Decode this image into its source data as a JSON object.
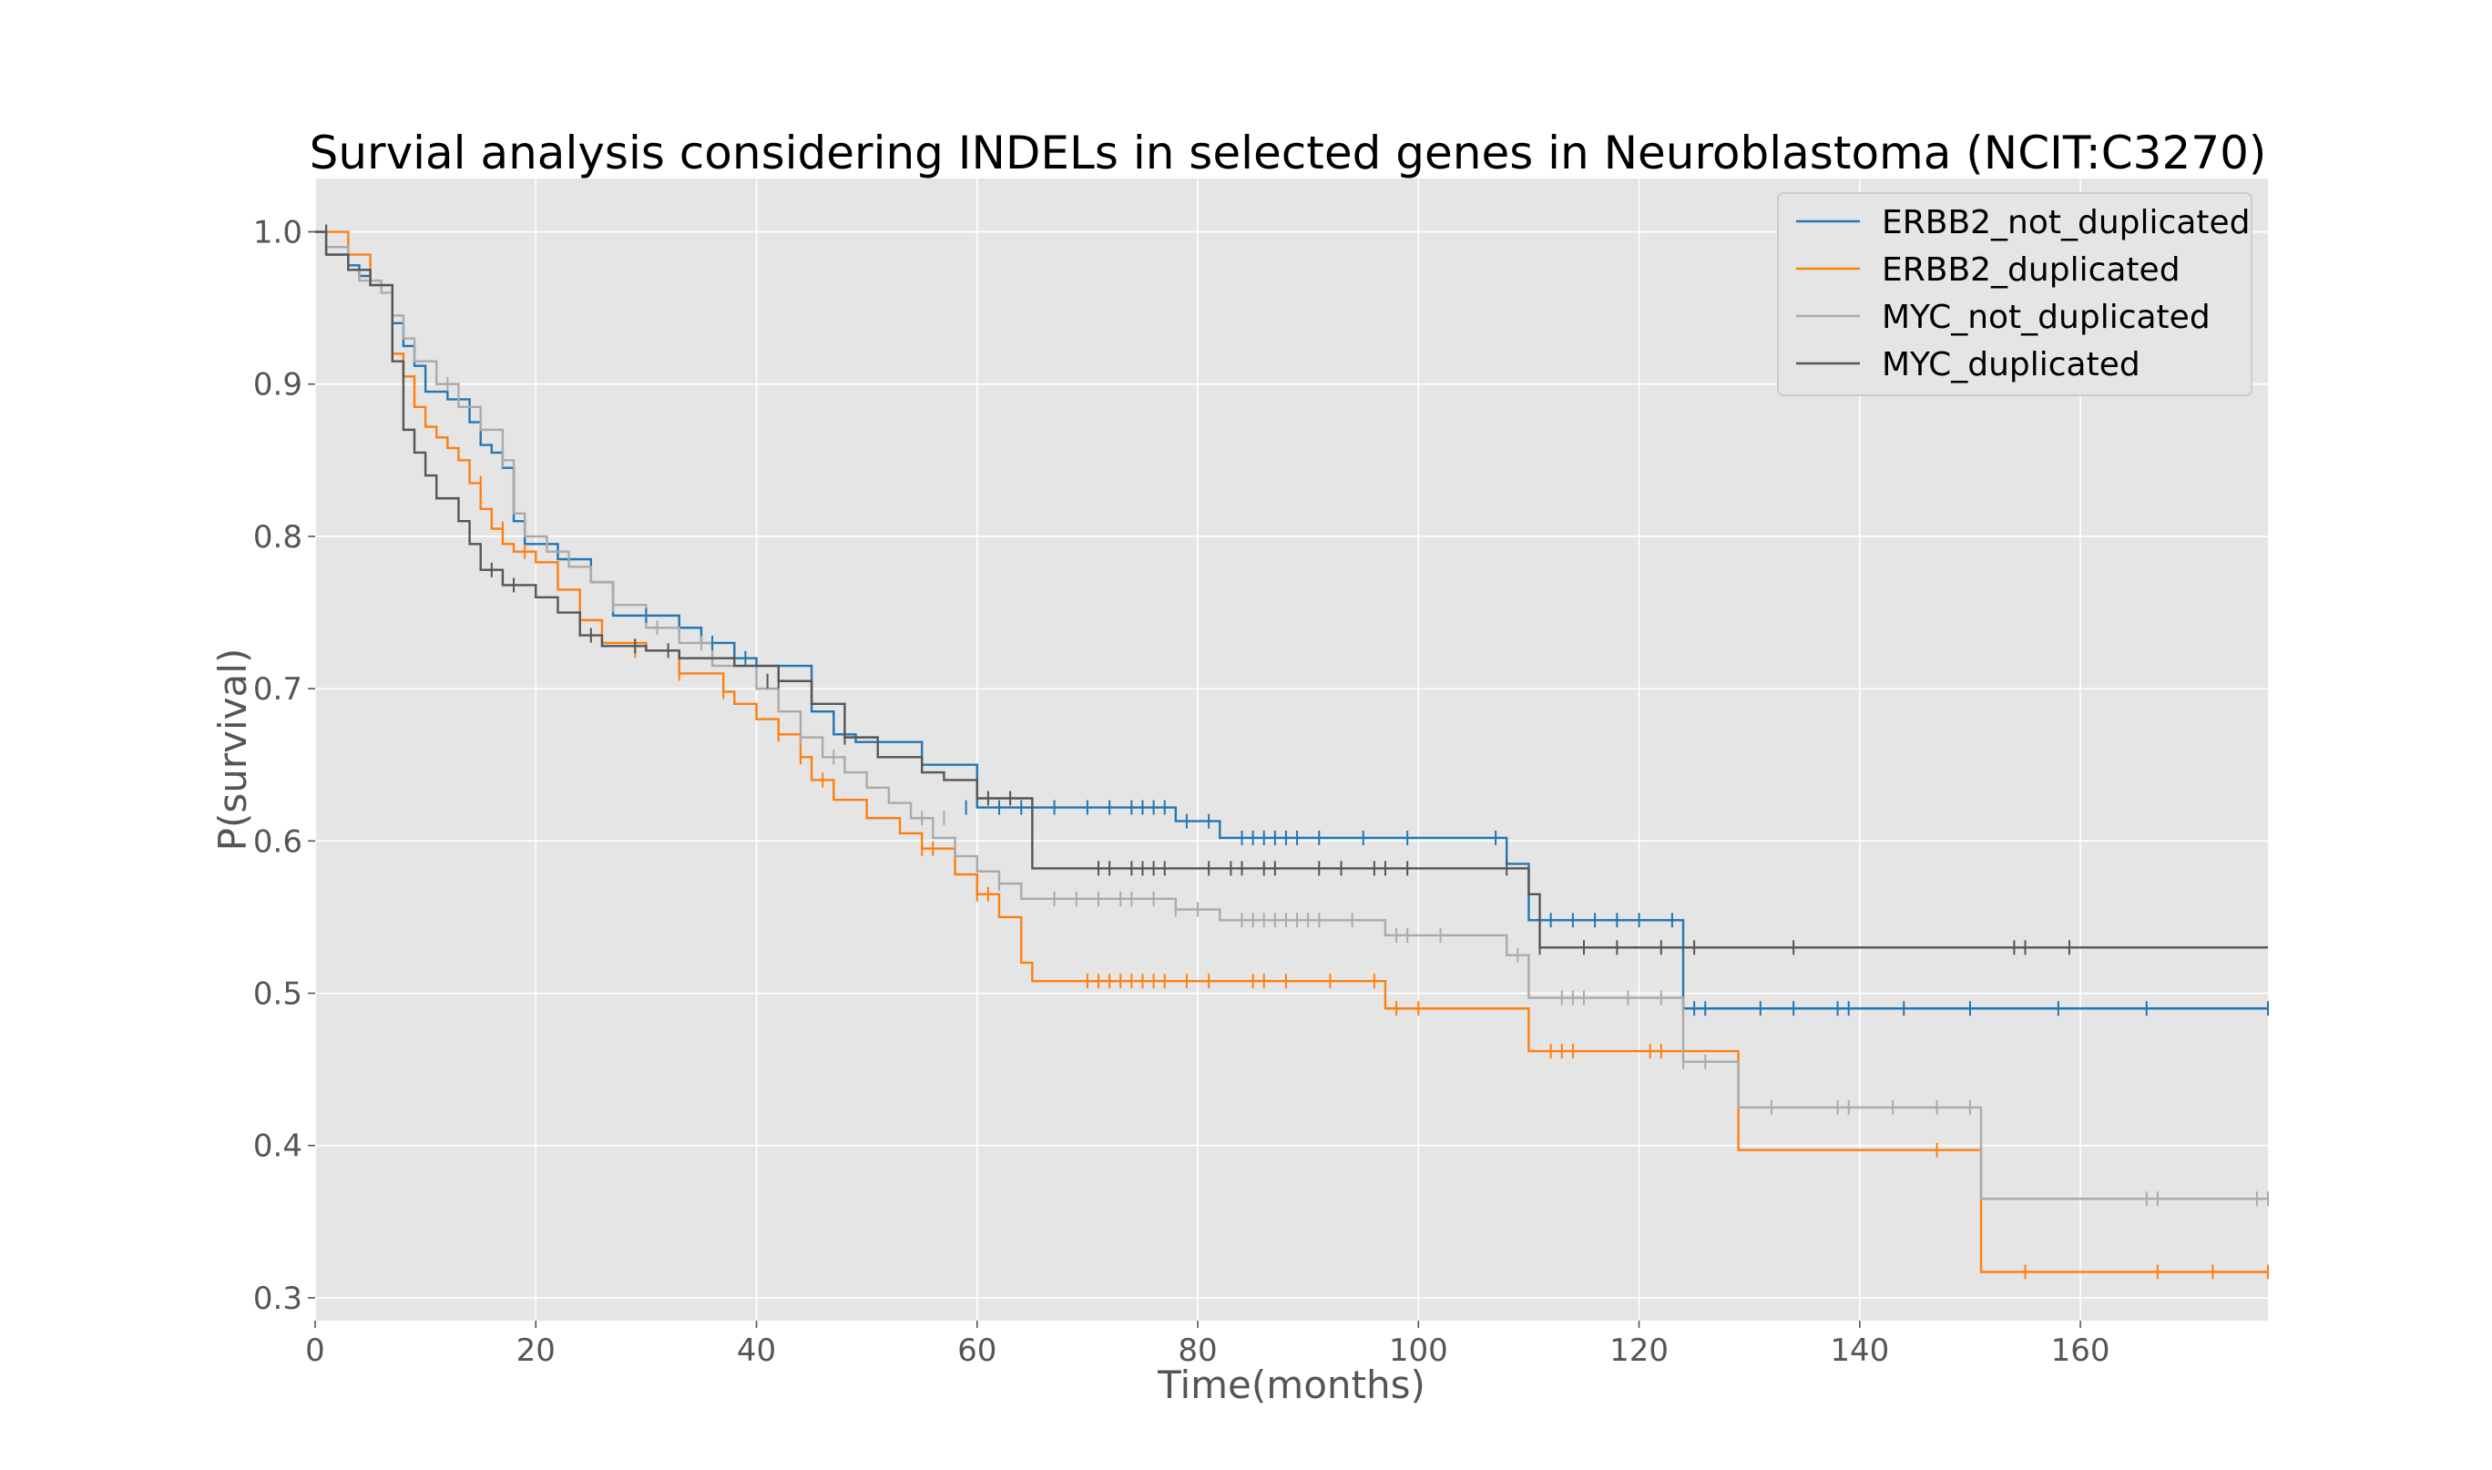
{
  "chart_data": {
    "type": "line",
    "subtype": "kaplan-meier step",
    "title": "Survial analysis considering INDELs in selected genes in Neuroblastoma (NCIT:C3270)",
    "xlabel": "Time(months)",
    "ylabel": "P(survival)",
    "xlim": [
      0,
      177
    ],
    "ylim": [
      0.285,
      1.035
    ],
    "xticks": [
      0,
      20,
      40,
      60,
      80,
      100,
      120,
      140,
      160
    ],
    "yticks": [
      0.3,
      0.4,
      0.5,
      0.6,
      0.7,
      0.8,
      0.9,
      1.0
    ],
    "xtick_labels": [
      "0",
      "20",
      "40",
      "60",
      "80",
      "100",
      "120",
      "140",
      "160"
    ],
    "ytick_labels": [
      "0.3",
      "0.4",
      "0.5",
      "0.6",
      "0.7",
      "0.8",
      "0.9",
      "1.0"
    ],
    "grid": true,
    "background": "#e5e5e5",
    "legend_position": "top-right",
    "series": [
      {
        "name": "ERBB2_not_duplicated",
        "color": "#1f77b4",
        "x": [
          0,
          1,
          3,
          4,
          5,
          7,
          8,
          9,
          10,
          12,
          14,
          15,
          16,
          17,
          18,
          19,
          22,
          25,
          27,
          33,
          35,
          38,
          40,
          45,
          47,
          49,
          53,
          55,
          60,
          78,
          82,
          108,
          110,
          124,
          177
        ],
        "y": [
          1.0,
          0.985,
          0.978,
          0.971,
          0.965,
          0.94,
          0.925,
          0.912,
          0.895,
          0.89,
          0.875,
          0.86,
          0.855,
          0.845,
          0.81,
          0.795,
          0.785,
          0.77,
          0.748,
          0.74,
          0.73,
          0.72,
          0.715,
          0.685,
          0.67,
          0.665,
          0.665,
          0.65,
          0.622,
          0.613,
          0.602,
          0.585,
          0.548,
          0.49,
          0.49
        ],
        "censor_x": [
          1,
          30,
          36,
          39,
          59,
          62,
          64,
          67,
          70,
          72,
          74,
          75,
          76,
          77,
          79,
          81,
          84,
          85,
          86,
          87,
          88,
          89,
          91,
          95,
          99,
          107,
          112,
          114,
          116,
          118,
          120,
          123,
          125,
          126,
          131,
          134,
          138,
          139,
          144,
          150,
          158,
          166,
          177
        ],
        "censor_y": [
          1.0,
          0.748,
          0.73,
          0.72,
          0.622,
          0.622,
          0.622,
          0.622,
          0.622,
          0.622,
          0.622,
          0.622,
          0.622,
          0.622,
          0.613,
          0.613,
          0.602,
          0.602,
          0.602,
          0.602,
          0.602,
          0.602,
          0.602,
          0.602,
          0.602,
          0.602,
          0.548,
          0.548,
          0.548,
          0.548,
          0.548,
          0.548,
          0.49,
          0.49,
          0.49,
          0.49,
          0.49,
          0.49,
          0.49,
          0.49,
          0.49,
          0.49,
          0.49
        ]
      },
      {
        "name": "ERBB2_duplicated",
        "color": "#ff7f0e",
        "x": [
          0,
          3,
          5,
          7,
          8,
          9,
          10,
          11,
          12,
          13,
          14,
          15,
          16,
          17,
          18,
          20,
          22,
          24,
          26,
          30,
          33,
          37,
          38,
          40,
          42,
          44,
          45,
          47,
          50,
          53,
          55,
          58,
          60,
          62,
          64,
          65,
          97,
          110,
          129,
          151,
          177
        ],
        "y": [
          1.0,
          0.985,
          0.965,
          0.92,
          0.905,
          0.885,
          0.872,
          0.865,
          0.858,
          0.85,
          0.835,
          0.818,
          0.805,
          0.795,
          0.79,
          0.783,
          0.765,
          0.745,
          0.73,
          0.725,
          0.71,
          0.698,
          0.69,
          0.68,
          0.67,
          0.655,
          0.64,
          0.627,
          0.615,
          0.605,
          0.595,
          0.578,
          0.565,
          0.55,
          0.52,
          0.508,
          0.49,
          0.462,
          0.397,
          0.317,
          0.317
        ],
        "censor_x": [
          1,
          15,
          17,
          19,
          29,
          33,
          37,
          42,
          44,
          46,
          55,
          56,
          60,
          61,
          70,
          71,
          72,
          73,
          74,
          75,
          76,
          77,
          79,
          81,
          85,
          86,
          88,
          92,
          96,
          98,
          100,
          112,
          113,
          114,
          121,
          122,
          147,
          155,
          167,
          172,
          177
        ],
        "censor_y": [
          1.0,
          0.835,
          0.805,
          0.79,
          0.725,
          0.71,
          0.698,
          0.67,
          0.655,
          0.64,
          0.595,
          0.595,
          0.565,
          0.565,
          0.508,
          0.508,
          0.508,
          0.508,
          0.508,
          0.508,
          0.508,
          0.508,
          0.508,
          0.508,
          0.508,
          0.508,
          0.508,
          0.508,
          0.508,
          0.49,
          0.49,
          0.462,
          0.462,
          0.462,
          0.462,
          0.462,
          0.397,
          0.317,
          0.317,
          0.317,
          0.317
        ]
      },
      {
        "name": "MYC_not_duplicated",
        "color": "#aaaaaa",
        "x": [
          0,
          1,
          3,
          4,
          6,
          7,
          8,
          9,
          11,
          13,
          15,
          17,
          18,
          19,
          21,
          23,
          25,
          27,
          30,
          33,
          36,
          40,
          42,
          44,
          46,
          48,
          50,
          52,
          54,
          56,
          58,
          60,
          62,
          64,
          78,
          82,
          97,
          108,
          110,
          124,
          129,
          151,
          177
        ],
        "y": [
          1.0,
          0.99,
          0.975,
          0.968,
          0.96,
          0.945,
          0.93,
          0.915,
          0.9,
          0.885,
          0.87,
          0.85,
          0.815,
          0.8,
          0.79,
          0.78,
          0.77,
          0.755,
          0.74,
          0.73,
          0.715,
          0.7,
          0.685,
          0.668,
          0.655,
          0.645,
          0.635,
          0.625,
          0.615,
          0.602,
          0.59,
          0.58,
          0.572,
          0.562,
          0.555,
          0.548,
          0.538,
          0.525,
          0.497,
          0.455,
          0.425,
          0.365,
          0.365
        ],
        "censor_x": [
          1,
          12,
          17,
          27,
          31,
          35,
          44,
          47,
          55,
          57,
          62,
          67,
          69,
          71,
          73,
          74,
          76,
          78,
          80,
          84,
          85,
          86,
          87,
          88,
          89,
          90,
          91,
          94,
          98,
          99,
          102,
          109,
          113,
          114,
          115,
          119,
          122,
          124,
          126,
          132,
          138,
          139,
          143,
          147,
          150,
          166,
          167,
          176,
          177
        ],
        "censor_y": [
          1.0,
          0.9,
          0.85,
          0.755,
          0.74,
          0.73,
          0.668,
          0.655,
          0.615,
          0.615,
          0.572,
          0.562,
          0.562,
          0.562,
          0.562,
          0.562,
          0.562,
          0.555,
          0.555,
          0.548,
          0.548,
          0.548,
          0.548,
          0.548,
          0.548,
          0.548,
          0.548,
          0.548,
          0.538,
          0.538,
          0.538,
          0.525,
          0.497,
          0.497,
          0.497,
          0.497,
          0.497,
          0.455,
          0.455,
          0.425,
          0.425,
          0.425,
          0.425,
          0.425,
          0.425,
          0.365,
          0.365,
          0.365,
          0.365
        ]
      },
      {
        "name": "MYC_duplicated",
        "color": "#555555",
        "x": [
          0,
          1,
          3,
          5,
          7,
          8,
          9,
          10,
          11,
          13,
          14,
          15,
          17,
          20,
          22,
          24,
          26,
          30,
          33,
          38,
          42,
          45,
          48,
          51,
          55,
          57,
          60,
          65,
          110,
          111,
          177
        ],
        "y": [
          1.0,
          0.985,
          0.975,
          0.965,
          0.915,
          0.87,
          0.855,
          0.84,
          0.825,
          0.81,
          0.795,
          0.778,
          0.768,
          0.76,
          0.75,
          0.735,
          0.728,
          0.725,
          0.72,
          0.715,
          0.705,
          0.69,
          0.668,
          0.655,
          0.645,
          0.64,
          0.628,
          0.582,
          0.565,
          0.53,
          0.53
        ],
        "censor_x": [
          1,
          16,
          18,
          25,
          29,
          32,
          41,
          42,
          48,
          61,
          63,
          71,
          72,
          74,
          75,
          76,
          77,
          81,
          83,
          84,
          86,
          87,
          91,
          93,
          96,
          97,
          99,
          108,
          111,
          115,
          118,
          122,
          125,
          134,
          154,
          155,
          159
        ],
        "censor_y": [
          1.0,
          0.778,
          0.768,
          0.735,
          0.728,
          0.725,
          0.705,
          0.705,
          0.668,
          0.628,
          0.628,
          0.582,
          0.582,
          0.582,
          0.582,
          0.582,
          0.582,
          0.582,
          0.582,
          0.582,
          0.582,
          0.582,
          0.582,
          0.582,
          0.582,
          0.582,
          0.582,
          0.582,
          0.53,
          0.53,
          0.53,
          0.53,
          0.53,
          0.53,
          0.53,
          0.53,
          0.53
        ]
      }
    ]
  }
}
